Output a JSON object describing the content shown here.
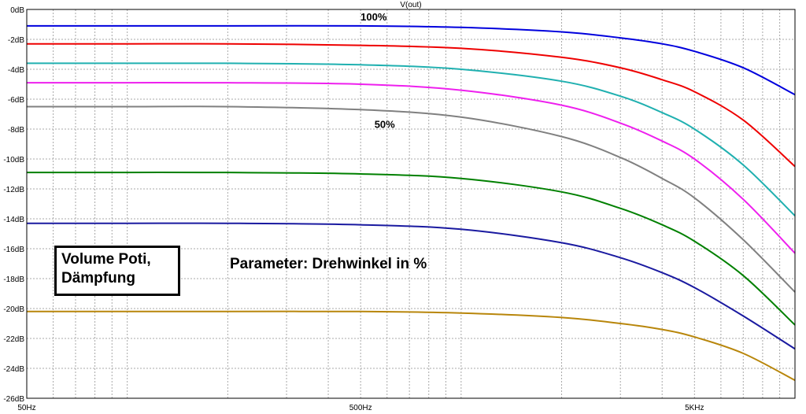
{
  "chart_data": {
    "type": "line",
    "ylabel": "V(out)",
    "x_scale": "log",
    "xlim": [
      50,
      10000
    ],
    "ylim": [
      -26,
      0
    ],
    "x_ticks": [
      {
        "value": 50,
        "label": "50Hz"
      },
      {
        "value": 500,
        "label": "500Hz"
      },
      {
        "value": 5000,
        "label": "5KHz"
      }
    ],
    "y_ticks": [
      {
        "value": 0,
        "label": "0dB"
      },
      {
        "value": -2,
        "label": "-2dB"
      },
      {
        "value": -4,
        "label": "-4dB"
      },
      {
        "value": -6,
        "label": "-6dB"
      },
      {
        "value": -8,
        "label": "-8dB"
      },
      {
        "value": -10,
        "label": "-10dB"
      },
      {
        "value": -12,
        "label": "-12dB"
      },
      {
        "value": -14,
        "label": "-14dB"
      },
      {
        "value": -16,
        "label": "-16dB"
      },
      {
        "value": -18,
        "label": "-18dB"
      },
      {
        "value": -20,
        "label": "-20dB"
      },
      {
        "value": -22,
        "label": "-22dB"
      },
      {
        "value": -24,
        "label": "-24dB"
      },
      {
        "value": -26,
        "label": "-26dB"
      }
    ],
    "grid": true,
    "annotations": [
      {
        "text": "100%",
        "x": 500,
        "y": -0.2
      },
      {
        "text": "50%",
        "x": 550,
        "y": -7.4
      }
    ],
    "series": [
      {
        "color": "#0000dd",
        "x": [
          50,
          100,
          200,
          500,
          1000,
          2000,
          3000,
          4000,
          5000,
          7000,
          10000
        ],
        "y": [
          -1.1,
          -1.1,
          -1.1,
          -1.1,
          -1.2,
          -1.5,
          -1.9,
          -2.3,
          -2.8,
          -3.9,
          -5.7
        ]
      },
      {
        "color": "#ee0000",
        "x": [
          50,
          100,
          200,
          500,
          1000,
          2000,
          3000,
          4000,
          5000,
          7000,
          10000
        ],
        "y": [
          -2.3,
          -2.3,
          -2.3,
          -2.4,
          -2.6,
          -3.2,
          -3.9,
          -4.7,
          -5.5,
          -7.4,
          -10.5
        ]
      },
      {
        "color": "#20b0b0",
        "x": [
          50,
          100,
          200,
          500,
          1000,
          2000,
          3000,
          4000,
          5000,
          7000,
          10000
        ],
        "y": [
          -3.6,
          -3.6,
          -3.6,
          -3.7,
          -4.0,
          -4.8,
          -5.8,
          -6.9,
          -8.0,
          -10.4,
          -13.8
        ]
      },
      {
        "color": "#ee20ee",
        "x": [
          50,
          100,
          200,
          500,
          1000,
          2000,
          3000,
          4000,
          5000,
          7000,
          10000
        ],
        "y": [
          -4.9,
          -4.9,
          -4.9,
          -5.0,
          -5.4,
          -6.4,
          -7.6,
          -8.8,
          -10.0,
          -12.7,
          -16.3
        ]
      },
      {
        "color": "#808080",
        "x": [
          50,
          100,
          200,
          500,
          1000,
          2000,
          3000,
          4000,
          5000,
          7000,
          10000
        ],
        "y": [
          -6.5,
          -6.5,
          -6.5,
          -6.7,
          -7.2,
          -8.5,
          -9.9,
          -11.3,
          -12.6,
          -15.4,
          -18.9
        ]
      },
      {
        "color": "#008000",
        "x": [
          50,
          100,
          200,
          500,
          1000,
          2000,
          3000,
          4000,
          5000,
          7000,
          10000
        ],
        "y": [
          -10.9,
          -10.9,
          -10.9,
          -11.0,
          -11.3,
          -12.2,
          -13.3,
          -14.4,
          -15.5,
          -17.8,
          -21.1
        ]
      },
      {
        "color": "#1a1aa0",
        "x": [
          50,
          100,
          200,
          500,
          1000,
          2000,
          3000,
          4000,
          5000,
          7000,
          10000
        ],
        "y": [
          -14.3,
          -14.3,
          -14.3,
          -14.4,
          -14.7,
          -15.6,
          -16.6,
          -17.6,
          -18.6,
          -20.5,
          -22.7
        ]
      },
      {
        "color": "#b8860b",
        "x": [
          50,
          100,
          200,
          500,
          1000,
          2000,
          3000,
          4000,
          5000,
          7000,
          10000
        ],
        "y": [
          -20.2,
          -20.2,
          -20.2,
          -20.2,
          -20.3,
          -20.6,
          -21.0,
          -21.4,
          -21.9,
          -23.0,
          -24.8
        ]
      }
    ]
  },
  "labels": {
    "box_title": "Volume Poti,\nDämpfung",
    "parameter_note": "Parameter: Drehwinkel in %"
  }
}
